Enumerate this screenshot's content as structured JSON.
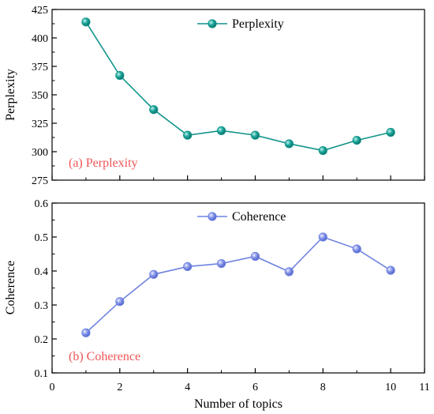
{
  "chart_data": [
    {
      "type": "line",
      "x": [
        1,
        2,
        3,
        4,
        5,
        6,
        7,
        8,
        9,
        10
      ],
      "series": [
        {
          "name": "Perplexity",
          "values": [
            414,
            367,
            337,
            314.5,
            318.5,
            314.5,
            307,
            301,
            310,
            317
          ],
          "color": "#12948a"
        }
      ],
      "xlabel": "",
      "ylabel": "Perplexity",
      "xlim": [
        0,
        11
      ],
      "ylim": [
        275,
        425
      ],
      "yticks": [
        275,
        300,
        325,
        350,
        375,
        400,
        425
      ],
      "annotation": {
        "text": "(a) Perplexity",
        "color": "#ef5555"
      },
      "legend": "top-center",
      "grid": false
    },
    {
      "type": "line",
      "x": [
        1,
        2,
        3,
        4,
        5,
        6,
        7,
        8,
        9,
        10
      ],
      "series": [
        {
          "name": "Coherence",
          "values": [
            0.218,
            0.31,
            0.39,
            0.413,
            0.422,
            0.443,
            0.398,
            0.5,
            0.465,
            0.402
          ],
          "color": "#6f83e0"
        }
      ],
      "xlabel": "Number of topics",
      "ylabel": "Coherence",
      "xlim": [
        0,
        11
      ],
      "ylim": [
        0.1,
        0.6
      ],
      "xticks": [
        0,
        2,
        4,
        6,
        8,
        10,
        11
      ],
      "yticks": [
        0.1,
        0.2,
        0.3,
        0.4,
        0.5,
        0.6
      ],
      "annotation": {
        "text": "(b) Coherence",
        "color": "#ef5555"
      },
      "legend": "top-center",
      "grid": false
    }
  ]
}
